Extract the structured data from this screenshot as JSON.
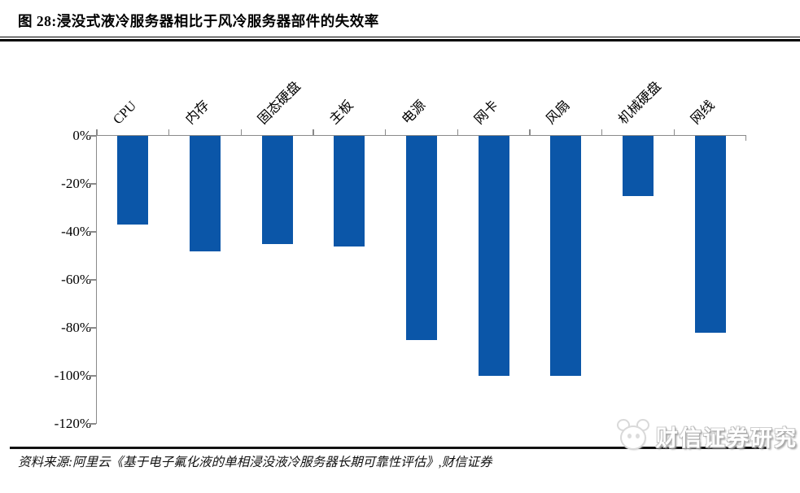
{
  "header": {
    "figure_label": "图 28:",
    "title": "浸没式液冷服务器相比于风冷服务器部件的失效率"
  },
  "chart_data": {
    "type": "bar",
    "title": "浸没式液冷服务器相比于风冷服务器部件的失效率",
    "categories": [
      "CPU",
      "内存",
      "固态硬盘",
      "主板",
      "电源",
      "网卡",
      "风扇",
      "机械硬盘",
      "网线"
    ],
    "values": [
      -37,
      -48,
      -45,
      -46,
      -85,
      -100,
      -100,
      -25,
      -82
    ],
    "unit": "%",
    "xlabel": "",
    "ylabel": "",
    "ylim": [
      -120,
      0
    ],
    "ytick_labels": [
      "0%",
      "-20%",
      "-40%",
      "-60%",
      "-80%",
      "-100%",
      "-120%"
    ],
    "bar_color": "#0B56A8",
    "axis_color": "#8A8A8A",
    "grid": false,
    "legend": "none",
    "category_label_rotation_deg": 45
  },
  "footer": {
    "source": "资料来源:阿里云《基于电子氟化液的单相浸没液冷服务器长期可靠性评估》,财信证券"
  },
  "watermark": {
    "text": "财信证券研究"
  }
}
